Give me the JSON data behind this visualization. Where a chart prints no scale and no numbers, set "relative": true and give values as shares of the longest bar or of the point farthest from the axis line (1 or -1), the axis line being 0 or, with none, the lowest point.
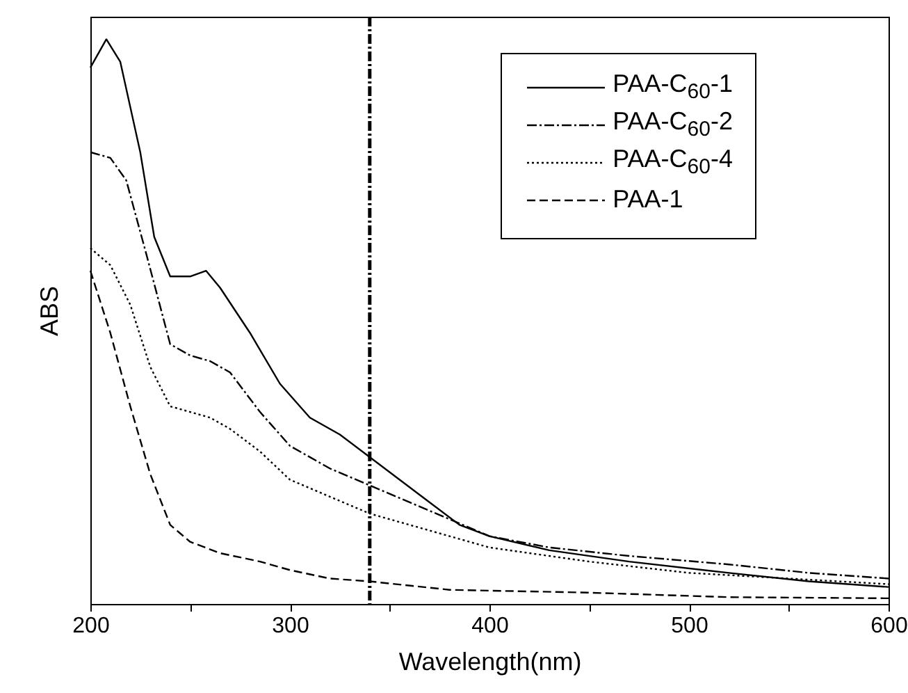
{
  "chart_data": {
    "type": "line",
    "xlabel": "Wavelength(nm)",
    "ylabel": "ABS",
    "relative": true,
    "xlim": [
      200,
      600
    ],
    "xticks": [
      200,
      {
        "value": 250,
        "label": null
      },
      300,
      {
        "value": 350,
        "label": null
      },
      400,
      {
        "value": 450,
        "label": null
      },
      500,
      {
        "value": 550,
        "label": null
      },
      600
    ],
    "legend": "top right",
    "ref_lines": [
      {
        "axis": "x",
        "value": 340,
        "line_style": "dashdot",
        "color": "#000000"
      }
    ],
    "series": [
      {
        "name": "PAA-C$_{60}$-1",
        "color": "#000000",
        "line_style": "solid",
        "x": [
          200,
          208,
          215,
          225,
          232,
          240,
          250,
          258,
          265,
          280,
          295,
          310,
          325,
          340,
          355,
          370,
          385,
          400,
          430,
          470,
          520,
          560,
          600
        ],
        "values": [
          0.95,
          1,
          0.96,
          0.8,
          0.65,
          0.58,
          0.58,
          0.59,
          0.56,
          0.48,
          0.39,
          0.33,
          0.3,
          0.26,
          0.22,
          0.18,
          0.14,
          0.12,
          0.095,
          0.075,
          0.055,
          0.04,
          0.03
        ]
      },
      {
        "name": "PAA-C$_{60}$-2",
        "color": "#000000",
        "line_style": "dashdot",
        "x": [
          200,
          210,
          218,
          228,
          240,
          250,
          260,
          270,
          285,
          300,
          320,
          340,
          360,
          380,
          400,
          430,
          470,
          520,
          560,
          600
        ],
        "values": [
          0.8,
          0.79,
          0.75,
          0.62,
          0.46,
          0.44,
          0.43,
          0.41,
          0.34,
          0.28,
          0.24,
          0.21,
          0.18,
          0.15,
          0.12,
          0.1,
          0.085,
          0.07,
          0.055,
          0.045
        ]
      },
      {
        "name": "PAA-C$_{60}$-4",
        "color": "#000000",
        "line_style": "dotted",
        "x": [
          200,
          210,
          220,
          230,
          240,
          250,
          260,
          270,
          285,
          300,
          320,
          340,
          360,
          380,
          400,
          450,
          500,
          550,
          600
        ],
        "values": [
          0.63,
          0.6,
          0.53,
          0.42,
          0.35,
          0.34,
          0.33,
          0.31,
          0.27,
          0.22,
          0.19,
          0.16,
          0.14,
          0.12,
          0.1,
          0.075,
          0.055,
          0.045,
          0.035
        ]
      },
      {
        "name": "PAA-1",
        "color": "#000000",
        "line_style": "dashed",
        "x": [
          200,
          210,
          220,
          230,
          240,
          250,
          265,
          285,
          300,
          320,
          340,
          380,
          450,
          520,
          600
        ],
        "values": [
          0.59,
          0.48,
          0.35,
          0.23,
          0.14,
          0.11,
          0.09,
          0.075,
          0.06,
          0.045,
          0.04,
          0.025,
          0.02,
          0.012,
          0.01
        ]
      }
    ]
  }
}
